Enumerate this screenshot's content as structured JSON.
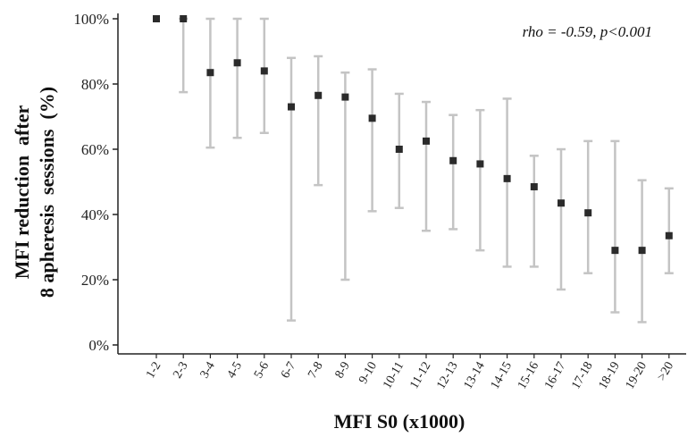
{
  "chart_data": {
    "type": "scatter",
    "xlabel": "MFI S0 (x1000)",
    "ylabel_lines": [
      "MFI reduction  after",
      "8 apheresis  sessions  (%)"
    ],
    "annotation": "rho = -0.59, p<0.001",
    "ylim": [
      0,
      100
    ],
    "yticks": [
      0,
      20,
      40,
      60,
      80,
      100
    ],
    "ytick_labels": [
      "0%",
      "20%",
      "40%",
      "60%",
      "80%",
      "100%"
    ],
    "grid": false,
    "categories": [
      "1-2",
      "2-3",
      "3-4",
      "4-5",
      "5-6",
      "6-7",
      "7-8",
      "8-9",
      "9-10",
      "10-11",
      "11-12",
      "12-13",
      "13-14",
      "14-15",
      "15-16",
      "16-17",
      "17-18",
      "18-19",
      "19-20",
      ">20"
    ],
    "values": [
      100,
      100,
      83.5,
      86.5,
      84,
      73,
      76.5,
      76,
      69.5,
      60,
      62.5,
      56.5,
      55.5,
      51,
      48.5,
      43.5,
      40.5,
      29,
      29,
      33.5
    ],
    "lower": [
      100,
      77.5,
      60.5,
      63.5,
      65,
      7.5,
      49,
      20,
      41,
      42,
      35,
      35.5,
      29,
      24,
      24,
      17,
      22,
      10,
      7,
      22
    ],
    "upper": [
      100,
      100,
      100,
      100,
      100,
      88,
      88.5,
      83.5,
      84.5,
      77,
      74.5,
      70.5,
      72,
      75.5,
      58,
      60,
      62.5,
      62.5,
      50.5,
      48
    ],
    "colors": {
      "marker": "#2b2b2b",
      "errorbar": "#c4c4c4",
      "axis": "#222222"
    }
  }
}
